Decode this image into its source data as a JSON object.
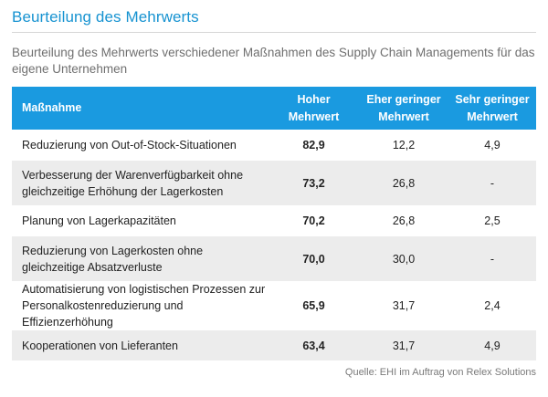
{
  "title": "Beurteilung des Mehrwerts",
  "subtitle": "Beurteilung des Mehrwerts verschiedener Maßnahmen des Supply Chain Managements für das eigene Unternehmen",
  "table": {
    "headers": {
      "massnahme": "Maßnahme",
      "hoch_1": "Hoher",
      "hoch_2": "Mehrwert",
      "eher_1": "Eher geringer",
      "eher_2": "Mehrwert",
      "sehr_1": "Sehr geringer",
      "sehr_2": "Mehrwert"
    },
    "rows": [
      {
        "label_1": "Reduzierung von Out-of-Stock-Situationen",
        "label_2": "",
        "hoch": "82,9",
        "eher": "12,2",
        "sehr": "4,9"
      },
      {
        "label_1": "Verbesserung der Warenverfügbarkeit ohne",
        "label_2": "gleichzeitige Erhöhung der Lagerkosten",
        "hoch": "73,2",
        "eher": "26,8",
        "sehr": "-"
      },
      {
        "label_1": "Planung von Lagerkapazitäten",
        "label_2": "",
        "hoch": "70,2",
        "eher": "26,8",
        "sehr": "2,5"
      },
      {
        "label_1": "Reduzierung von Lagerkosten ohne",
        "label_2": "gleichzeitige Absatzverluste",
        "hoch": "70,0",
        "eher": "30,0",
        "sehr": "-"
      },
      {
        "label_1": "Automatisierung von logistischen Prozessen zur",
        "label_2": "Personalkostenreduzierung und Effizienzerhöhung",
        "hoch": "65,9",
        "eher": "31,7",
        "sehr": "2,4"
      },
      {
        "label_1": "Kooperationen von Lieferanten",
        "label_2": "",
        "hoch": "63,4",
        "eher": "31,7",
        "sehr": "4,9"
      }
    ]
  },
  "source": "Quelle: EHI im Auftrag von Relex Solutions",
  "colors": {
    "accent": "#1a9ae0",
    "title": "#1793d1",
    "stripe": "#ececec"
  }
}
